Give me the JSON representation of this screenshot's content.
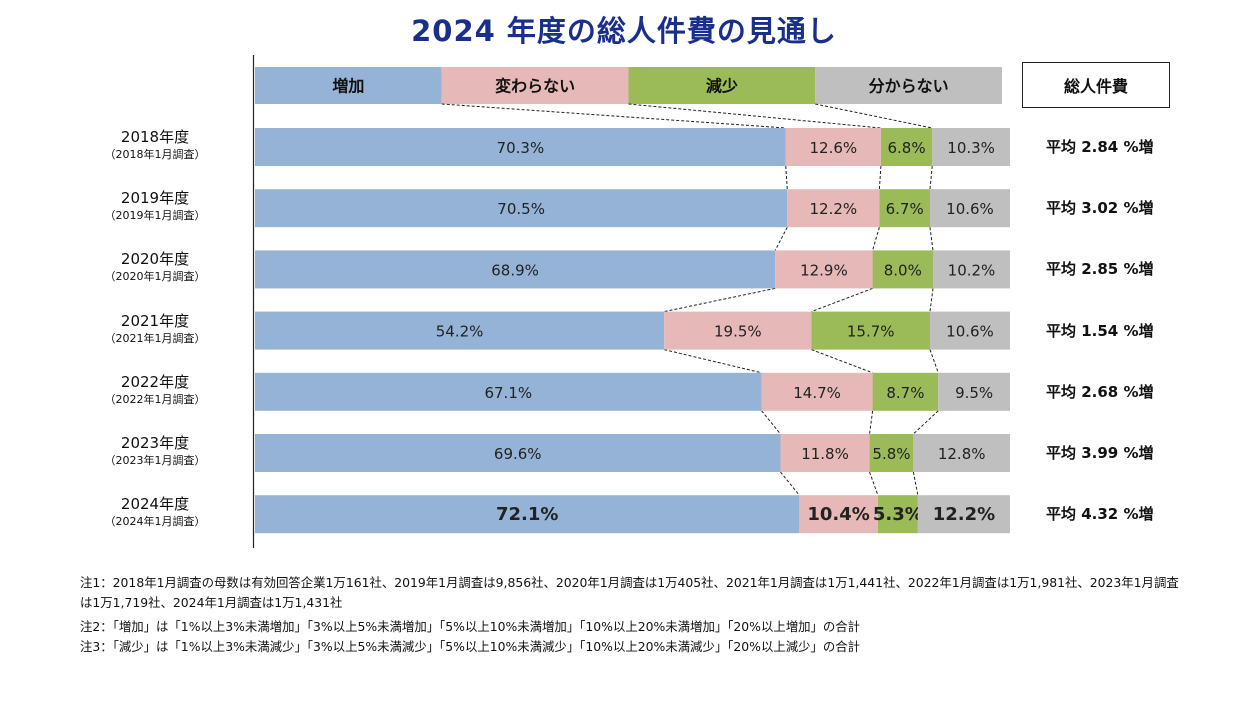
{
  "title": "2024 年度の総人件費の見通し",
  "legend_box": "総人件費",
  "chart_data": {
    "type": "bar",
    "stacked": "100%",
    "orientation": "horizontal",
    "title": "2024 年度の総人件費の見通し",
    "series_names": [
      "増加",
      "変わらない",
      "減少",
      "分からない"
    ],
    "colors": [
      "#95b3d7",
      "#e6b9b8",
      "#9bbb59",
      "#bfbfbf"
    ],
    "categories": [
      "2018年度",
      "2019年度",
      "2020年度",
      "2021年度",
      "2022年度",
      "2023年度",
      "2024年度"
    ],
    "sub_labels": [
      "（2018年1月調査）",
      "（2019年1月調査）",
      "（2020年1月調査）",
      "（2021年1月調査）",
      "（2022年1月調査）",
      "（2023年1月調査）",
      "（2024年1月調査）"
    ],
    "series": [
      {
        "name": "増加",
        "values": [
          70.3,
          70.5,
          68.9,
          54.2,
          67.1,
          69.6,
          72.1
        ]
      },
      {
        "name": "変わらない",
        "values": [
          12.6,
          12.2,
          12.9,
          19.5,
          14.7,
          11.8,
          10.4
        ]
      },
      {
        "name": "減少",
        "values": [
          6.8,
          6.7,
          8.0,
          15.7,
          8.7,
          5.8,
          5.3
        ]
      },
      {
        "name": "分からない",
        "values": [
          10.3,
          10.6,
          10.2,
          10.6,
          9.5,
          12.8,
          12.2
        ]
      }
    ],
    "averages": [
      "平均 2.84 %増",
      "平均 3.02 %増",
      "平均 2.85 %増",
      "平均 1.54 %増",
      "平均 2.68 %増",
      "平均 3.99 %増",
      "平均 4.32 %増"
    ],
    "highlight_last_row": true
  },
  "notes": [
    "注1：2018年1月調査の母数は有効回答企業1万161社、2019年1月調査は9,856社、2020年1月調査は1万405社、2021年1月調査は1万1,441社、2022年1月調査は1万1,981社、2023年1月調査は1万1,719社、2024年1月調査は1万1,431社",
    "注2：「増加」は「1%以上3%未満増加」「3%以上5%未満増加」「5%以上10%未満増加」「10%以上20%未満増加」「20%以上増加」の合計",
    "注3：「減少」は「1%以上3%未満減少」「3%以上5%未満減少」「5%以上10%未満減少」「10%以上20%未満減少」「20%以上減少」の合計"
  ]
}
